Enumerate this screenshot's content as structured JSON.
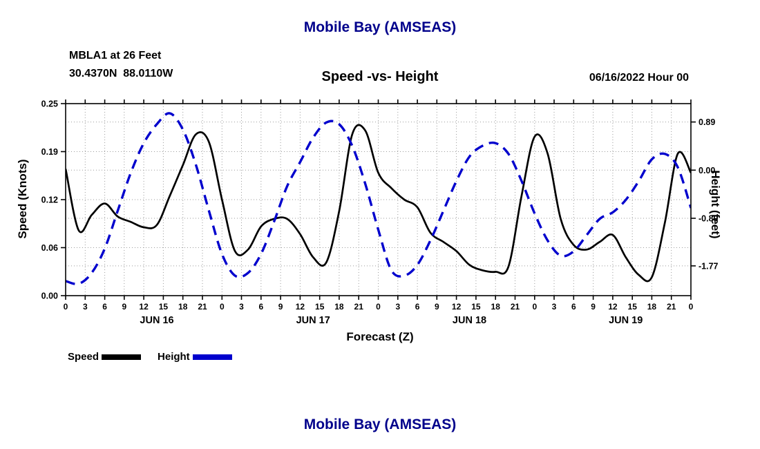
{
  "page": {
    "title_top": "Mobile Bay (AMSEAS)",
    "station_line1": "MBLA1 at 26 Feet",
    "station_line2": "30.4370N  88.0110W",
    "subtitle": "Speed -vs- Height",
    "datetime_label": "06/16/2022 Hour 00",
    "title_bottom": "Mobile Bay (AMSEAS)"
  },
  "colors": {
    "title": "#00008b",
    "speed_line": "#000000",
    "height_line": "#0000cd",
    "grid": "#9a9a9a",
    "axis": "#000000"
  },
  "chart_data": {
    "type": "line",
    "title": "Mobile Bay (AMSEAS)",
    "subtitle": "Speed -vs- Height",
    "station": "MBLA1 at 26 Feet",
    "location": "30.4370N 88.0110W",
    "init_time": "06/16/2022 Hour 00",
    "xlabel": "Forecast (Z)",
    "ylabel_left": "Speed (Knots)",
    "ylabel_right": "Height (feet)",
    "xlim": [
      0,
      96
    ],
    "grid": true,
    "legend_position": "bottom-left",
    "left_axis": {
      "label": "Speed (Knots)",
      "lim": [
        0,
        0.25
      ],
      "tick_values": [
        0,
        0.0625,
        0.125,
        0.1875,
        0.25
      ],
      "tick_labels": [
        "0.00",
        "0.06",
        "0.12",
        "0.19",
        "0.25"
      ]
    },
    "right_axis": {
      "label": "Height (feet)",
      "lim": [
        -2.32,
        1.23
      ],
      "tick_values": [
        0.89,
        0.0,
        -0.89,
        -1.77
      ],
      "tick_labels": [
        "0.89",
        "0.00",
        "-0.89",
        "-1.77"
      ]
    },
    "x_ticks": {
      "hours": [
        0,
        3,
        6,
        9,
        12,
        15,
        18,
        21,
        24,
        27,
        30,
        33,
        36,
        39,
        42,
        45,
        48,
        51,
        54,
        57,
        60,
        63,
        66,
        69,
        72,
        75,
        78,
        81,
        84,
        87,
        90,
        93,
        96
      ],
      "labels": [
        "0",
        "3",
        "6",
        "9",
        "12",
        "15",
        "18",
        "21",
        "0",
        "3",
        "6",
        "9",
        "12",
        "15",
        "18",
        "21",
        "0",
        "3",
        "6",
        "9",
        "12",
        "15",
        "18",
        "21",
        "0",
        "3",
        "6",
        "9",
        "12",
        "15",
        "18",
        "21",
        "0"
      ]
    },
    "day_labels": [
      {
        "label": "JUN 16",
        "center_hour": 14
      },
      {
        "label": "JUN 17",
        "center_hour": 38
      },
      {
        "label": "JUN 18",
        "center_hour": 62
      },
      {
        "label": "JUN 19",
        "center_hour": 86
      }
    ],
    "x_hours": [
      0,
      2,
      4,
      6,
      8,
      10,
      12,
      14,
      16,
      18,
      20,
      22,
      24,
      26,
      28,
      30,
      32,
      34,
      36,
      38,
      40,
      42,
      44,
      46,
      48,
      50,
      52,
      54,
      56,
      58,
      60,
      62,
      64,
      66,
      68,
      70,
      72,
      74,
      76,
      78,
      80,
      82,
      84,
      86,
      88,
      90,
      92,
      94,
      96
    ],
    "series": [
      {
        "name": "Speed",
        "axis": "left",
        "color": "#000000",
        "style": "solid",
        "values": [
          0.165,
          0.085,
          0.105,
          0.12,
          0.103,
          0.096,
          0.089,
          0.092,
          0.13,
          0.17,
          0.21,
          0.2,
          0.125,
          0.058,
          0.06,
          0.09,
          0.1,
          0.1,
          0.08,
          0.05,
          0.043,
          0.11,
          0.21,
          0.215,
          0.16,
          0.14,
          0.125,
          0.115,
          0.082,
          0.07,
          0.058,
          0.04,
          0.033,
          0.031,
          0.038,
          0.13,
          0.207,
          0.185,
          0.1,
          0.066,
          0.06,
          0.07,
          0.079,
          0.05,
          0.027,
          0.024,
          0.095,
          0.185,
          0.16
        ]
      },
      {
        "name": "Height",
        "axis": "right",
        "color": "#0000cd",
        "style": "dashed",
        "values": [
          -2.05,
          -2.1,
          -1.9,
          -1.45,
          -0.75,
          -0.05,
          0.5,
          0.85,
          1.05,
          0.75,
          0.1,
          -0.75,
          -1.55,
          -1.95,
          -1.9,
          -1.55,
          -0.95,
          -0.3,
          0.15,
          0.6,
          0.88,
          0.85,
          0.45,
          -0.25,
          -1.1,
          -1.85,
          -1.95,
          -1.75,
          -1.3,
          -0.75,
          -0.2,
          0.25,
          0.45,
          0.5,
          0.3,
          -0.2,
          -0.8,
          -1.3,
          -1.58,
          -1.5,
          -1.2,
          -0.9,
          -0.78,
          -0.55,
          -0.2,
          0.2,
          0.3,
          0.05,
          -0.7
        ]
      }
    ]
  }
}
